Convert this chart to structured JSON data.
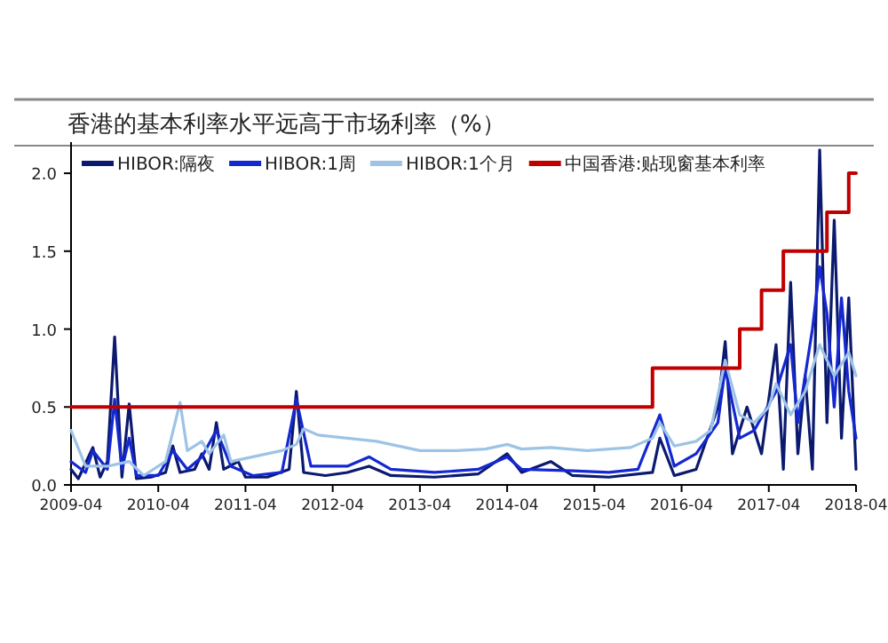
{
  "chart_data": {
    "type": "line",
    "title": "香港的基本利率水平远高于市场利率（%）",
    "xlim": [
      "2009-04",
      "2018-04"
    ],
    "xticks": [
      "2009-04",
      "2010-04",
      "2011-04",
      "2012-04",
      "2013-04",
      "2014-04",
      "2015-04",
      "2016-04",
      "2017-04",
      "2018-04"
    ],
    "ylim": [
      0,
      2.2
    ],
    "yticks": [
      {
        "value": 0,
        "label": "0.0"
      },
      {
        "value": 0.5,
        "label": "0.5"
      },
      {
        "value": 1,
        "label": "1.0"
      },
      {
        "value": 1.5,
        "label": "1.5"
      },
      {
        "value": 2,
        "label": "2.0"
      }
    ],
    "grid": false,
    "legend": "top",
    "marker": "none",
    "line_style": "solid",
    "series": [
      {
        "name": "HIBOR:隔夜",
        "color": "#0b1a6e",
        "x": [
          "2009-04",
          "2009-05",
          "2009-07",
          "2009-08",
          "2009-09",
          "2009-10",
          "2009-11",
          "2009-12",
          "2010-01",
          "2010-03",
          "2010-05",
          "2010-06",
          "2010-07",
          "2010-09",
          "2010-10",
          "2010-11",
          "2010-12",
          "2011-01",
          "2011-03",
          "2011-04",
          "2011-07",
          "2011-10",
          "2011-11",
          "2011-12",
          "2012-03",
          "2012-06",
          "2012-09",
          "2012-12",
          "2013-06",
          "2013-12",
          "2014-04",
          "2014-06",
          "2014-10",
          "2015-01",
          "2015-06",
          "2015-12",
          "2016-01",
          "2016-03",
          "2016-06",
          "2016-09",
          "2016-10",
          "2016-11",
          "2017-01",
          "2017-03",
          "2017-05",
          "2017-06",
          "2017-07",
          "2017-08",
          "2017-09",
          "2017-10",
          "2017-11",
          "2017-12",
          "2018-01",
          "2018-02",
          "2018-03",
          "2018-04"
        ],
        "values": [
          0.1,
          0.04,
          0.24,
          0.05,
          0.15,
          0.95,
          0.05,
          0.52,
          0.04,
          0.05,
          0.08,
          0.25,
          0.08,
          0.1,
          0.2,
          0.1,
          0.4,
          0.1,
          0.15,
          0.05,
          0.05,
          0.1,
          0.6,
          0.08,
          0.06,
          0.08,
          0.12,
          0.06,
          0.05,
          0.07,
          0.2,
          0.08,
          0.15,
          0.06,
          0.05,
          0.08,
          0.3,
          0.06,
          0.1,
          0.5,
          0.92,
          0.2,
          0.5,
          0.2,
          0.9,
          0.1,
          1.3,
          0.2,
          0.7,
          0.1,
          2.15,
          0.4,
          1.7,
          0.3,
          1.2,
          0.1
        ]
      },
      {
        "name": "HIBOR:1周",
        "color": "#1428d2",
        "x": [
          "2009-04",
          "2009-06",
          "2009-07",
          "2009-09",
          "2009-10",
          "2009-11",
          "2009-12",
          "2010-01",
          "2010-04",
          "2010-06",
          "2010-08",
          "2010-10",
          "2010-12",
          "2011-02",
          "2011-05",
          "2011-09",
          "2011-11",
          "2012-01",
          "2012-06",
          "2012-09",
          "2012-12",
          "2013-06",
          "2013-12",
          "2014-04",
          "2014-06",
          "2015-01",
          "2015-06",
          "2015-10",
          "2016-01",
          "2016-03",
          "2016-06",
          "2016-09",
          "2016-10",
          "2016-12",
          "2017-02",
          "2017-05",
          "2017-07",
          "2017-08",
          "2017-10",
          "2017-11",
          "2017-12",
          "2018-01",
          "2018-02",
          "2018-03",
          "2018-04"
        ],
        "values": [
          0.15,
          0.08,
          0.22,
          0.1,
          0.55,
          0.1,
          0.3,
          0.06,
          0.06,
          0.22,
          0.1,
          0.18,
          0.35,
          0.12,
          0.06,
          0.08,
          0.55,
          0.12,
          0.12,
          0.18,
          0.1,
          0.08,
          0.1,
          0.18,
          0.1,
          0.09,
          0.08,
          0.1,
          0.45,
          0.12,
          0.2,
          0.4,
          0.75,
          0.3,
          0.35,
          0.6,
          0.9,
          0.4,
          1.0,
          1.4,
          1.1,
          0.5,
          1.2,
          0.6,
          0.3
        ]
      },
      {
        "name": "HIBOR:1个月",
        "color": "#9dc3e6",
        "x": [
          "2009-04",
          "2009-06",
          "2009-09",
          "2009-12",
          "2010-02",
          "2010-05",
          "2010-07",
          "2010-08",
          "2010-10",
          "2010-11",
          "2011-01",
          "2011-02",
          "2011-04",
          "2011-07",
          "2011-09",
          "2011-11",
          "2011-12",
          "2012-02",
          "2012-06",
          "2012-10",
          "2013-01",
          "2013-04",
          "2013-09",
          "2014-01",
          "2014-04",
          "2014-06",
          "2014-10",
          "2015-03",
          "2015-09",
          "2015-12",
          "2016-01",
          "2016-03",
          "2016-06",
          "2016-08",
          "2016-10",
          "2016-12",
          "2017-02",
          "2017-04",
          "2017-05",
          "2017-07",
          "2017-09",
          "2017-11",
          "2018-01",
          "2018-03",
          "2018-04"
        ],
        "values": [
          0.35,
          0.12,
          0.12,
          0.15,
          0.06,
          0.15,
          0.53,
          0.22,
          0.28,
          0.2,
          0.32,
          0.15,
          0.17,
          0.2,
          0.22,
          0.26,
          0.36,
          0.32,
          0.3,
          0.28,
          0.25,
          0.22,
          0.22,
          0.23,
          0.26,
          0.23,
          0.24,
          0.22,
          0.24,
          0.3,
          0.4,
          0.25,
          0.28,
          0.35,
          0.8,
          0.45,
          0.4,
          0.5,
          0.65,
          0.45,
          0.6,
          0.9,
          0.7,
          0.85,
          0.7
        ]
      },
      {
        "name": "中国香港:贴现窗基本利率",
        "color": "#c00000",
        "type": "step",
        "x": [
          "2009-04",
          "2015-12",
          "2016-12",
          "2017-03",
          "2017-06",
          "2017-12",
          "2018-03",
          "2018-04"
        ],
        "values": [
          0.5,
          0.75,
          1.0,
          1.25,
          1.5,
          1.75,
          2.0,
          2.0
        ]
      }
    ]
  }
}
